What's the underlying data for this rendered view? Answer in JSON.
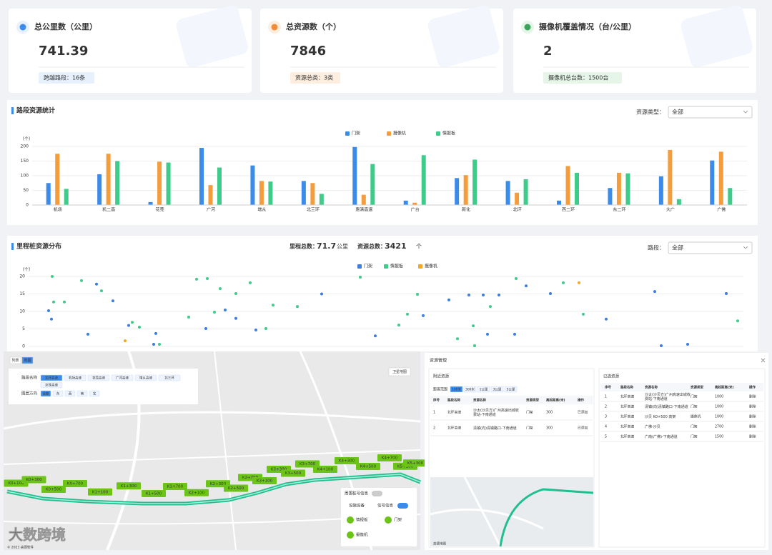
{
  "cards": [
    {
      "title": "总公里数（公里）",
      "value": 741.39,
      "badge": "跨越路段：16条"
    },
    {
      "title": "总资源数（个）",
      "value": 7846,
      "badge": "资源总类：3类"
    },
    {
      "title": "摄像机覆盖情况（台/公里）",
      "value": 2,
      "badge": "摄像机总台数：1500台"
    }
  ],
  "chart_data": [
    {
      "type": "bar",
      "title": "路段资源统计",
      "filter_label": "资源类型：",
      "filter_value": "全部",
      "y_unit": "（个）",
      "legend": "top",
      "categories": [
        "机场",
        "机二高",
        "花莞",
        "广河",
        "增从",
        "北三环",
        "惠清高速",
        "广台",
        "新化",
        "北环",
        "西二环",
        "东二环",
        "大广",
        "广佛"
      ],
      "series": [
        {
          "name": "门架",
          "color": "#3b8beb",
          "values": [
            75,
            105,
            10,
            195,
            135,
            82,
            198,
            15,
            92,
            82,
            15,
            58,
            98,
            152
          ]
        },
        {
          "name": "摄像机",
          "color": "#f59d3d",
          "values": [
            175,
            175,
            148,
            68,
            82,
            75,
            35,
            8,
            102,
            42,
            133,
            110,
            188,
            182
          ]
        },
        {
          "name": "情报板",
          "color": "#3fcb8a",
          "values": [
            55,
            150,
            145,
            128,
            80,
            38,
            140,
            170,
            155,
            88,
            110,
            108,
            20,
            58
          ]
        }
      ],
      "ylim": [
        0,
        200
      ],
      "yticks": [
        0,
        50,
        100,
        150,
        200
      ],
      "grid": true
    },
    {
      "type": "scatter",
      "title": "里程桩资源分布",
      "stats": [
        {
          "label": "里程总数：",
          "value": 71.7,
          "unit": "公里"
        },
        {
          "label": "资源总数：",
          "value": 3421,
          "unit": "个"
        }
      ],
      "filter_label": "路段：",
      "filter_value": "全部",
      "y_unit": "（个）",
      "legend": "top",
      "xlim": [
        0,
        100
      ],
      "ylim": [
        0,
        20
      ],
      "yticks": [
        0,
        5,
        10,
        15,
        20
      ],
      "grid": true,
      "series": [
        {
          "name": "门架",
          "color": "#3b7de0",
          "x": [
            2.8,
            3.2,
            8.3,
            9.5,
            11.8,
            14,
            17.8,
            17.5,
            24.8,
            27.5,
            29,
            31.8,
            41,
            48.5,
            55.2,
            58.8,
            61.6,
            63.6,
            65.8,
            64.2,
            68,
            69.6,
            73,
            80.8,
            87.6,
            97.6,
            88.5,
            92.2
          ],
          "values": [
            10.2,
            7.8,
            3.5,
            17.8,
            13,
            6,
            3.7,
            0.6,
            5.1,
            10.4,
            8,
            4.7,
            15,
            3,
            8.8,
            13.3,
            14.7,
            14.7,
            14.7,
            3.5,
            3.5,
            17.3,
            15.1,
            7.8,
            15.7,
            15.1,
            0.2,
            0.6
          ]
        },
        {
          "name": "情报板",
          "color": "#3fcb8a",
          "x": [
            3.3,
            3.5,
            5,
            7.4,
            10.2,
            14.5,
            15.5,
            18.3,
            22.4,
            23.5,
            25,
            26,
            26.8,
            29,
            31,
            33.2,
            34.2,
            37.6,
            46.4,
            51.8,
            53,
            54.4,
            60,
            62.2,
            62.4,
            64.6,
            68.2,
            74.8,
            77.6,
            99.2
          ],
          "values": [
            20,
            12.7,
            12.7,
            18.8,
            15.9,
            6.9,
            5.5,
            0.6,
            8.4,
            19.2,
            19.4,
            9.8,
            16.5,
            15.1,
            18.2,
            5.1,
            11.8,
            11.4,
            19.8,
            6.1,
            9.2,
            14.9,
            2.2,
            5.9,
            0.2,
            11.4,
            19.4,
            18.2,
            9.2,
            7.3
          ]
        },
        {
          "name": "摄像机",
          "color": "#f5a623",
          "x": [
            13.5,
            77
          ],
          "values": [
            1.6,
            18.2
          ]
        }
      ]
    }
  ],
  "map": {
    "view_tabs": [
      "列表",
      "地图"
    ],
    "filters": [
      {
        "label": "路段名称",
        "options": [
          "北环高速",
          "机场高速",
          "花莞高速",
          "广河高速",
          "增从高速",
          "北三环",
          "京珠高速"
        ]
      },
      {
        "label": "图层方向",
        "options": [
          "全部",
          "东",
          "西",
          "南",
          "北"
        ]
      }
    ],
    "satellite_button": "卫星地图",
    "markers": [
      "K0+100",
      "K0+300",
      "K0+500",
      "K0+700",
      "K1+100",
      "K1+300",
      "K1+500",
      "K1+700",
      "K2+100",
      "K2+300",
      "K2+500",
      "K2+700",
      "K3+100",
      "K3+300",
      "K3+500",
      "K3+700",
      "K4+100",
      "K4+300",
      "K4+500",
      "K4+700",
      "K5+100",
      "K5+300"
    ],
    "legend": {
      "toggle_label": "周围桩号信息",
      "tabs": [
        "设施设备",
        "信号信息"
      ],
      "items": [
        "情报板",
        "门架",
        "摄像机"
      ]
    },
    "copyright": "© 2023 高德软件"
  },
  "resource_dialog": {
    "title": "资源管理",
    "nearby": {
      "title": "附近资源",
      "range_label": "距离范围",
      "ranges": [
        "100米",
        "300米",
        "1公里",
        "3公里",
        "5公里"
      ],
      "columns": [
        "序号",
        "路段名称",
        "资源名称",
        "资源类型",
        "离起距离(米)",
        "操作"
      ],
      "rows": [
        [
          1,
          "北环高速",
          "沙太(沙贝方)广州高速出城收费站-下南通道",
          "门架",
          300,
          "已添加"
        ],
        [
          2,
          "北环高速",
          "清镇(向)清镇路口-下南通道",
          "门架",
          300,
          "已添加"
        ]
      ]
    },
    "selected": {
      "title": "已选资源",
      "columns": [
        "序号",
        "路段名称",
        "资源名称",
        "资源类型",
        "离起距离(米)",
        "操作"
      ],
      "rows": [
        [
          1,
          "北环高速",
          "沙太(沙贝方)广州高速出城收费站-下南通道",
          "门架",
          1000,
          "删除"
        ],
        [
          2,
          "北环高速",
          "清镇(向)清镇路口-下南通道",
          "门架",
          1000,
          "删除"
        ],
        [
          3,
          "北环高速",
          "沙贝 K0+500 高架",
          "摄像机",
          1000,
          "删除"
        ],
        [
          4,
          "北环高速",
          "广佛-沙贝",
          "门架",
          2700,
          "删除"
        ],
        [
          5,
          "北环高速",
          "广南(广佛)-下南通道",
          "门架",
          1500,
          "删除"
        ]
      ]
    },
    "map_label": "高德地图"
  },
  "watermark": "大数跨境"
}
